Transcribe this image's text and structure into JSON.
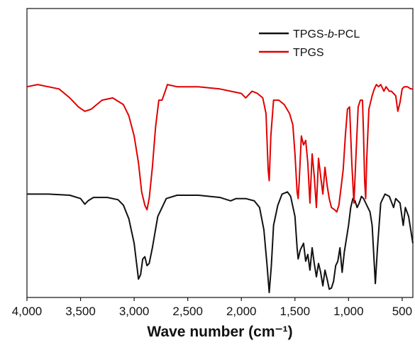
{
  "chart_data": {
    "type": "line",
    "title": "",
    "xlabel": "Wave number (cm⁻¹)",
    "ylabel": "",
    "xlim": [
      4000,
      400
    ],
    "x_reversed": true,
    "y_tick_labels": false,
    "grid": false,
    "legend_position": "top-right",
    "x_ticks": [
      4000,
      3500,
      3000,
      2500,
      2000,
      1500,
      1000,
      500
    ],
    "x_tick_labels": [
      "4,000",
      "3,500",
      "3,000",
      "2,500",
      "2,000",
      "1,500",
      "1,000",
      "500"
    ],
    "series": [
      {
        "name": "TPGS-b-PCL",
        "legend_main": "TPGS-",
        "legend_italic": "b",
        "legend_tail": "-PCL",
        "color": "#111111",
        "points": [
          [
            4000,
            0.44
          ],
          [
            3800,
            0.44
          ],
          [
            3600,
            0.435
          ],
          [
            3500,
            0.42
          ],
          [
            3460,
            0.395
          ],
          [
            3430,
            0.41
          ],
          [
            3380,
            0.425
          ],
          [
            3250,
            0.425
          ],
          [
            3150,
            0.415
          ],
          [
            3100,
            0.39
          ],
          [
            3050,
            0.33
          ],
          [
            3000,
            0.22
          ],
          [
            2960,
            0.06
          ],
          [
            2940,
            0.08
          ],
          [
            2920,
            0.15
          ],
          [
            2900,
            0.16
          ],
          [
            2880,
            0.12
          ],
          [
            2860,
            0.13
          ],
          [
            2830,
            0.2
          ],
          [
            2780,
            0.34
          ],
          [
            2700,
            0.42
          ],
          [
            2600,
            0.435
          ],
          [
            2400,
            0.435
          ],
          [
            2200,
            0.425
          ],
          [
            2100,
            0.41
          ],
          [
            2050,
            0.42
          ],
          [
            1960,
            0.42
          ],
          [
            1880,
            0.41
          ],
          [
            1830,
            0.38
          ],
          [
            1790,
            0.28
          ],
          [
            1760,
            0.12
          ],
          [
            1740,
            0.0
          ],
          [
            1720,
            0.12
          ],
          [
            1700,
            0.3
          ],
          [
            1660,
            0.39
          ],
          [
            1620,
            0.44
          ],
          [
            1570,
            0.45
          ],
          [
            1540,
            0.43
          ],
          [
            1500,
            0.34
          ],
          [
            1480,
            0.2
          ],
          [
            1470,
            0.15
          ],
          [
            1450,
            0.19
          ],
          [
            1420,
            0.22
          ],
          [
            1400,
            0.14
          ],
          [
            1380,
            0.17
          ],
          [
            1360,
            0.1
          ],
          [
            1340,
            0.2
          ],
          [
            1320,
            0.13
          ],
          [
            1300,
            0.07
          ],
          [
            1280,
            0.13
          ],
          [
            1260,
            0.09
          ],
          [
            1240,
            0.03
          ],
          [
            1220,
            0.1
          ],
          [
            1200,
            0.06
          ],
          [
            1180,
            0.015
          ],
          [
            1160,
            0.02
          ],
          [
            1140,
            0.05
          ],
          [
            1120,
            0.12
          ],
          [
            1100,
            0.14
          ],
          [
            1080,
            0.2
          ],
          [
            1060,
            0.09
          ],
          [
            1040,
            0.18
          ],
          [
            1000,
            0.3
          ],
          [
            980,
            0.38
          ],
          [
            960,
            0.42
          ],
          [
            940,
            0.41
          ],
          [
            920,
            0.38
          ],
          [
            900,
            0.4
          ],
          [
            880,
            0.43
          ],
          [
            860,
            0.42
          ],
          [
            840,
            0.4
          ],
          [
            800,
            0.36
          ],
          [
            780,
            0.3
          ],
          [
            750,
            0.04
          ],
          [
            730,
            0.2
          ],
          [
            700,
            0.4
          ],
          [
            660,
            0.44
          ],
          [
            620,
            0.43
          ],
          [
            580,
            0.38
          ],
          [
            560,
            0.42
          ],
          [
            520,
            0.4
          ],
          [
            490,
            0.3
          ],
          [
            470,
            0.38
          ],
          [
            440,
            0.34
          ],
          [
            410,
            0.25
          ],
          [
            400,
            0.22
          ]
        ]
      },
      {
        "name": "TPGS",
        "legend_main": "TPGS",
        "legend_italic": "",
        "legend_tail": "",
        "color": "#e00000",
        "points": [
          [
            4000,
            0.92
          ],
          [
            3900,
            0.93
          ],
          [
            3800,
            0.92
          ],
          [
            3700,
            0.91
          ],
          [
            3600,
            0.87
          ],
          [
            3520,
            0.83
          ],
          [
            3460,
            0.81
          ],
          [
            3400,
            0.82
          ],
          [
            3300,
            0.86
          ],
          [
            3200,
            0.87
          ],
          [
            3100,
            0.84
          ],
          [
            3050,
            0.79
          ],
          [
            3000,
            0.7
          ],
          [
            2960,
            0.58
          ],
          [
            2930,
            0.45
          ],
          [
            2900,
            0.39
          ],
          [
            2880,
            0.37
          ],
          [
            2860,
            0.42
          ],
          [
            2830,
            0.56
          ],
          [
            2800,
            0.74
          ],
          [
            2770,
            0.86
          ],
          [
            2740,
            0.86
          ],
          [
            2710,
            0.9
          ],
          [
            2690,
            0.93
          ],
          [
            2600,
            0.92
          ],
          [
            2400,
            0.92
          ],
          [
            2200,
            0.91
          ],
          [
            2000,
            0.89
          ],
          [
            1960,
            0.87
          ],
          [
            1900,
            0.9
          ],
          [
            1850,
            0.89
          ],
          [
            1800,
            0.87
          ],
          [
            1770,
            0.8
          ],
          [
            1750,
            0.55
          ],
          [
            1740,
            0.5
          ],
          [
            1725,
            0.7
          ],
          [
            1700,
            0.86
          ],
          [
            1650,
            0.86
          ],
          [
            1600,
            0.84
          ],
          [
            1550,
            0.8
          ],
          [
            1520,
            0.75
          ],
          [
            1500,
            0.62
          ],
          [
            1480,
            0.45
          ],
          [
            1470,
            0.42
          ],
          [
            1460,
            0.5
          ],
          [
            1440,
            0.7
          ],
          [
            1420,
            0.66
          ],
          [
            1400,
            0.68
          ],
          [
            1380,
            0.58
          ],
          [
            1360,
            0.4
          ],
          [
            1340,
            0.62
          ],
          [
            1320,
            0.52
          ],
          [
            1300,
            0.38
          ],
          [
            1280,
            0.6
          ],
          [
            1260,
            0.52
          ],
          [
            1240,
            0.44
          ],
          [
            1220,
            0.56
          ],
          [
            1200,
            0.48
          ],
          [
            1180,
            0.42
          ],
          [
            1160,
            0.38
          ],
          [
            1130,
            0.37
          ],
          [
            1110,
            0.36
          ],
          [
            1090,
            0.39
          ],
          [
            1070,
            0.47
          ],
          [
            1050,
            0.55
          ],
          [
            1030,
            0.7
          ],
          [
            1010,
            0.82
          ],
          [
            990,
            0.83
          ],
          [
            970,
            0.58
          ],
          [
            950,
            0.4
          ],
          [
            930,
            0.62
          ],
          [
            910,
            0.83
          ],
          [
            890,
            0.86
          ],
          [
            870,
            0.86
          ],
          [
            860,
            0.7
          ],
          [
            850,
            0.5
          ],
          [
            840,
            0.42
          ],
          [
            830,
            0.6
          ],
          [
            810,
            0.82
          ],
          [
            780,
            0.88
          ],
          [
            760,
            0.91
          ],
          [
            740,
            0.93
          ],
          [
            720,
            0.92
          ],
          [
            700,
            0.93
          ],
          [
            670,
            0.9
          ],
          [
            650,
            0.92
          ],
          [
            620,
            0.9
          ],
          [
            600,
            0.9
          ],
          [
            560,
            0.88
          ],
          [
            540,
            0.81
          ],
          [
            520,
            0.85
          ],
          [
            500,
            0.91
          ],
          [
            480,
            0.92
          ],
          [
            450,
            0.92
          ],
          [
            420,
            0.91
          ],
          [
            400,
            0.91
          ]
        ]
      }
    ]
  }
}
